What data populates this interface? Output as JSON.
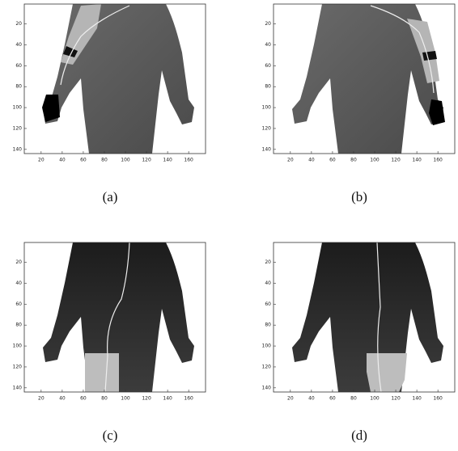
{
  "xticks": [
    20,
    40,
    60,
    80,
    100,
    120,
    140,
    160
  ],
  "yticks": [
    20,
    40,
    60,
    80,
    100,
    120,
    140
  ],
  "panels": [
    {
      "caption": "(a)"
    },
    {
      "caption": "(b)"
    },
    {
      "caption": "(c)"
    },
    {
      "caption": "(d)"
    }
  ]
}
